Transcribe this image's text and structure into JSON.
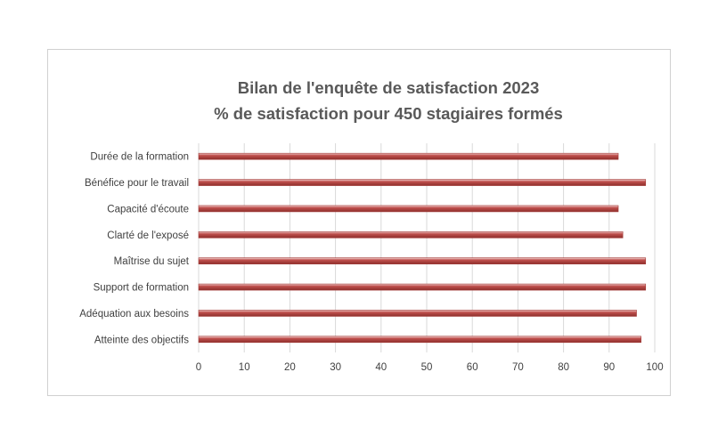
{
  "chart_data": {
    "type": "bar",
    "orientation": "horizontal",
    "title_lines": [
      "Bilan de l'enquête de satisfaction 2023",
      "% de satisfaction pour 450 stagiaires formés"
    ],
    "categories": [
      "Durée de la formation",
      "Bénéfice pour le travail",
      "Capacité d'écoute",
      "Clarté de l'exposé",
      "Maîtrise du sujet",
      "Support de formation",
      "Adéquation aux besoins",
      "Atteinte des objectifs"
    ],
    "values": [
      92,
      98,
      92,
      93,
      98,
      98,
      96,
      97
    ],
    "xlim": [
      0,
      100
    ],
    "xticks": [
      0,
      10,
      20,
      30,
      40,
      50,
      60,
      70,
      80,
      90,
      100
    ],
    "grid": true,
    "legend": "none",
    "bar_color": "#c0504d"
  }
}
